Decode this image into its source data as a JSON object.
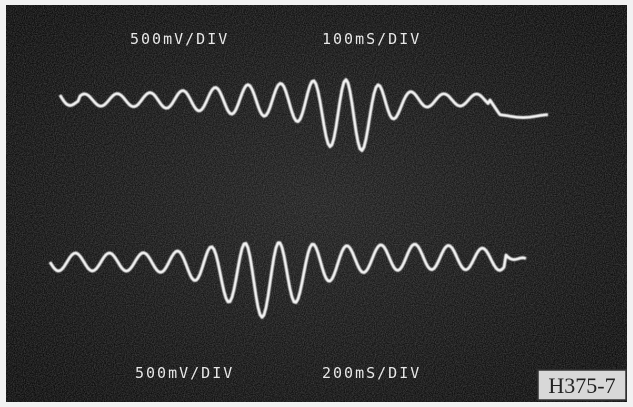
{
  "top_trace": {
    "volts_per_div": "500mV/DIV",
    "time_per_div": "100mS/DIV"
  },
  "bottom_trace": {
    "volts_per_div": "500mV/DIV",
    "time_per_div": "200mS/DIV"
  },
  "figure_id": "H375-7"
}
